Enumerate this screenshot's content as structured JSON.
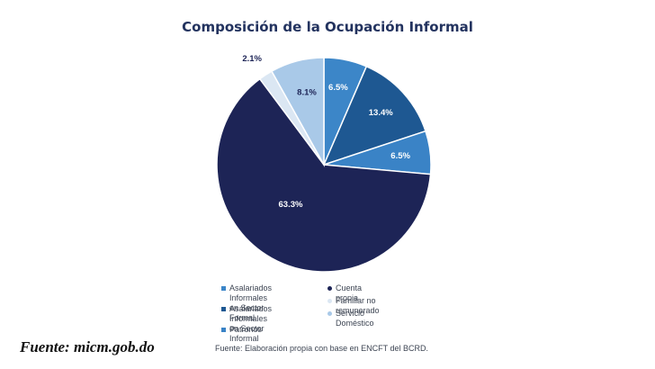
{
  "chart_data": {
    "type": "pie",
    "title": "Composición de la Ocupación Informal",
    "slices": [
      {
        "label": "Asalariados Informales en Sector Formal",
        "legend": "Asalariados Informales\nen Sector Formal",
        "value": 6.5,
        "display": "6.5%",
        "color": "#3c86c8",
        "label_color": "#ffffff"
      },
      {
        "label": "Asalariados Informales en Sector Informal",
        "legend": "Asalariados Informales\nen Sector  Informal",
        "value": 13.4,
        "display": "13.4%",
        "color": "#1e5892",
        "label_color": "#ffffff"
      },
      {
        "label": "Patronos",
        "legend": "Patronos",
        "value": 6.5,
        "display": "6.5%",
        "color": "#3a83c6",
        "label_color": "#ffffff"
      },
      {
        "label": "Cuenta propia",
        "legend": "Cuenta propia",
        "value": 63.3,
        "display": "63.3%",
        "color": "#1d2456",
        "label_color": "#ffffff"
      },
      {
        "label": "Familiar no remunerado",
        "legend": "Familiar no remunerado",
        "value": 2.1,
        "display": "2.1%",
        "color": "#dbe7f3",
        "label_color": "#1d2456"
      },
      {
        "label": "Servicio Doméstico",
        "legend": "Servicio Doméstico",
        "value": 8.1,
        "display": "8.1%",
        "color": "#a9c9e8",
        "label_color": "#1d2456"
      }
    ]
  },
  "source_note": "Fuente: Elaboración propia con base en ENCFT del BCRD.",
  "source_credit": "Fuente: micm.gob.do"
}
